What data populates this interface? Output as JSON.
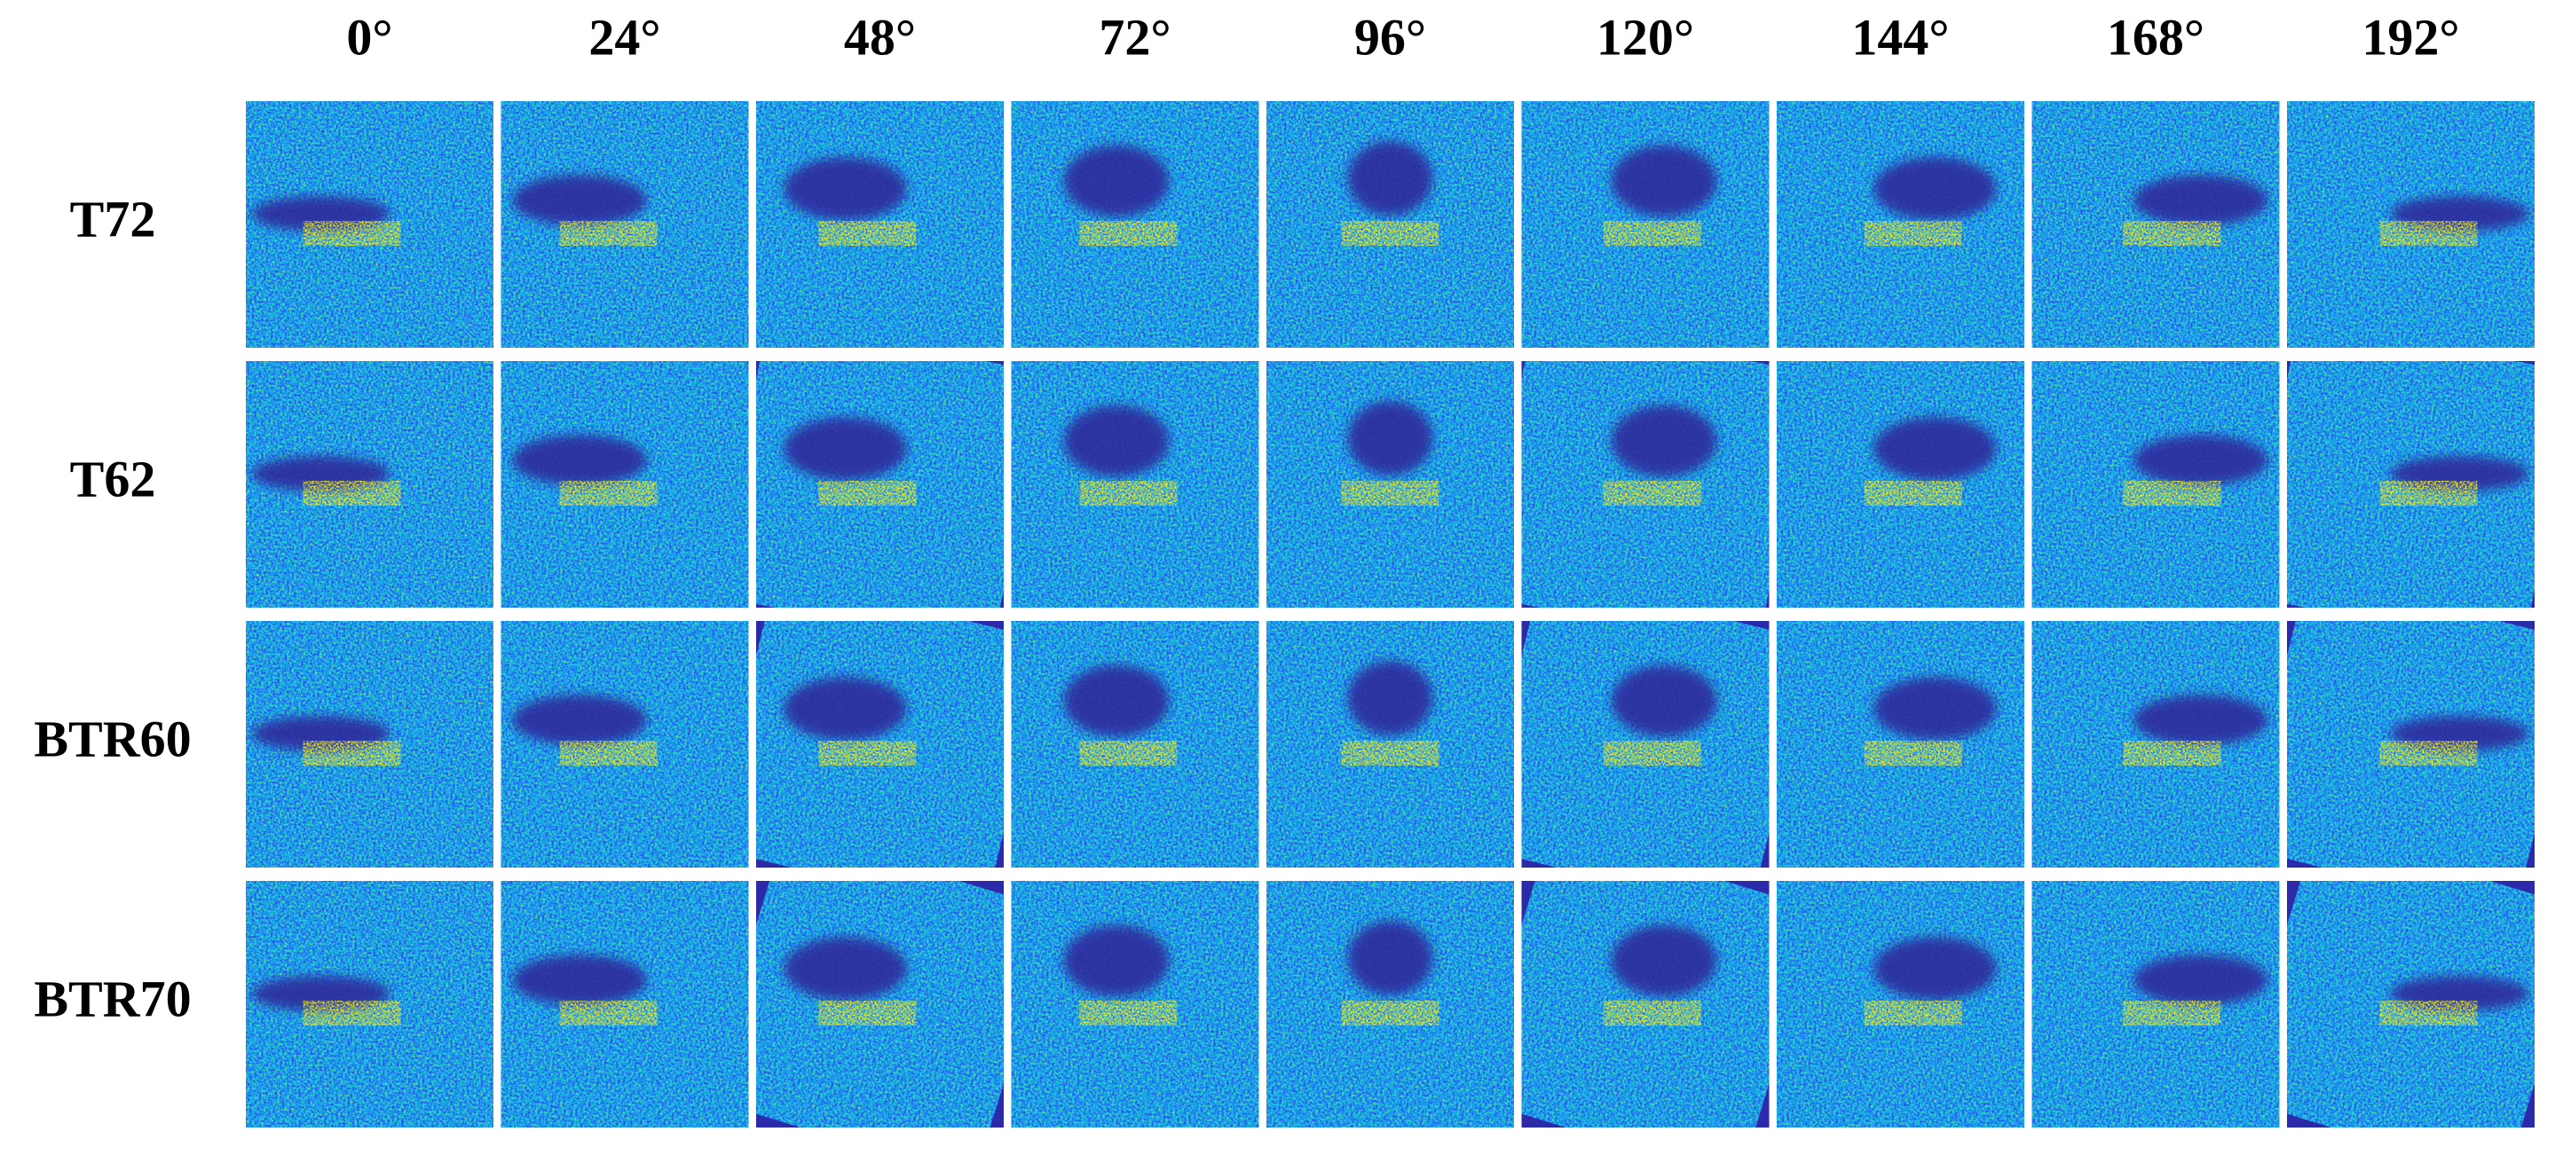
{
  "columns": [
    "0°",
    "24°",
    "48°",
    "72°",
    "96°",
    "120°",
    "144°",
    "168°",
    "192°"
  ],
  "rows": [
    "T72",
    "T62",
    "BTR60",
    "BTR70"
  ]
}
